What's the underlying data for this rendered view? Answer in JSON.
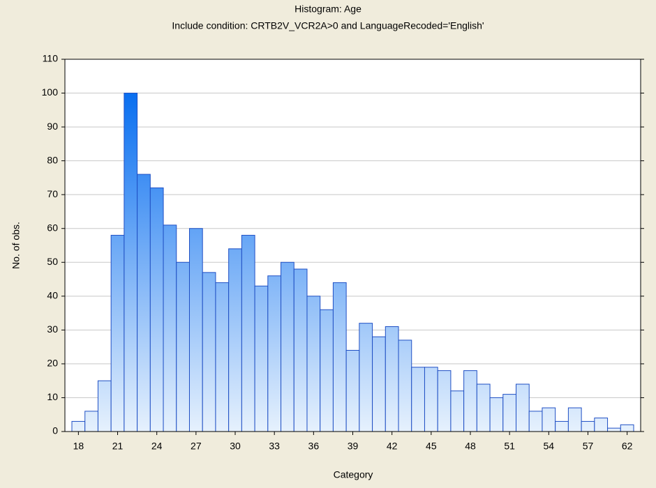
{
  "chart_data": {
    "type": "bar",
    "title": "Histogram: Age",
    "subtitle": "Include condition: CRTB2V_VCR2A>0 and LanguageRecoded='English'",
    "x_label": "Category",
    "y_label": "No. of obs.",
    "categories": [
      "18",
      null,
      null,
      "21",
      null,
      null,
      "24",
      null,
      null,
      "27",
      null,
      null,
      "30",
      null,
      null,
      "33",
      null,
      null,
      "36",
      null,
      null,
      "39",
      null,
      null,
      "42",
      null,
      null,
      "45",
      null,
      null,
      "48",
      null,
      null,
      "51",
      null,
      null,
      "54",
      null,
      null,
      "57",
      null,
      null,
      "62"
    ],
    "values": [
      3,
      6,
      15,
      58,
      100,
      76,
      72,
      61,
      50,
      60,
      47,
      44,
      54,
      58,
      43,
      46,
      50,
      48,
      40,
      36,
      44,
      24,
      32,
      28,
      31,
      27,
      19,
      19,
      18,
      12,
      18,
      14,
      10,
      11,
      14,
      6,
      7,
      3,
      7,
      3,
      4,
      1,
      2
    ],
    "colors": [
      "#0a6ff0",
      "#e6f1fd"
    ],
    "edge_color": "#1f4fc4",
    "ylim": [
      0,
      110
    ],
    "yticks": [
      0,
      10,
      20,
      30,
      40,
      50,
      60,
      70,
      80,
      90,
      100,
      110
    ],
    "grid": true
  }
}
